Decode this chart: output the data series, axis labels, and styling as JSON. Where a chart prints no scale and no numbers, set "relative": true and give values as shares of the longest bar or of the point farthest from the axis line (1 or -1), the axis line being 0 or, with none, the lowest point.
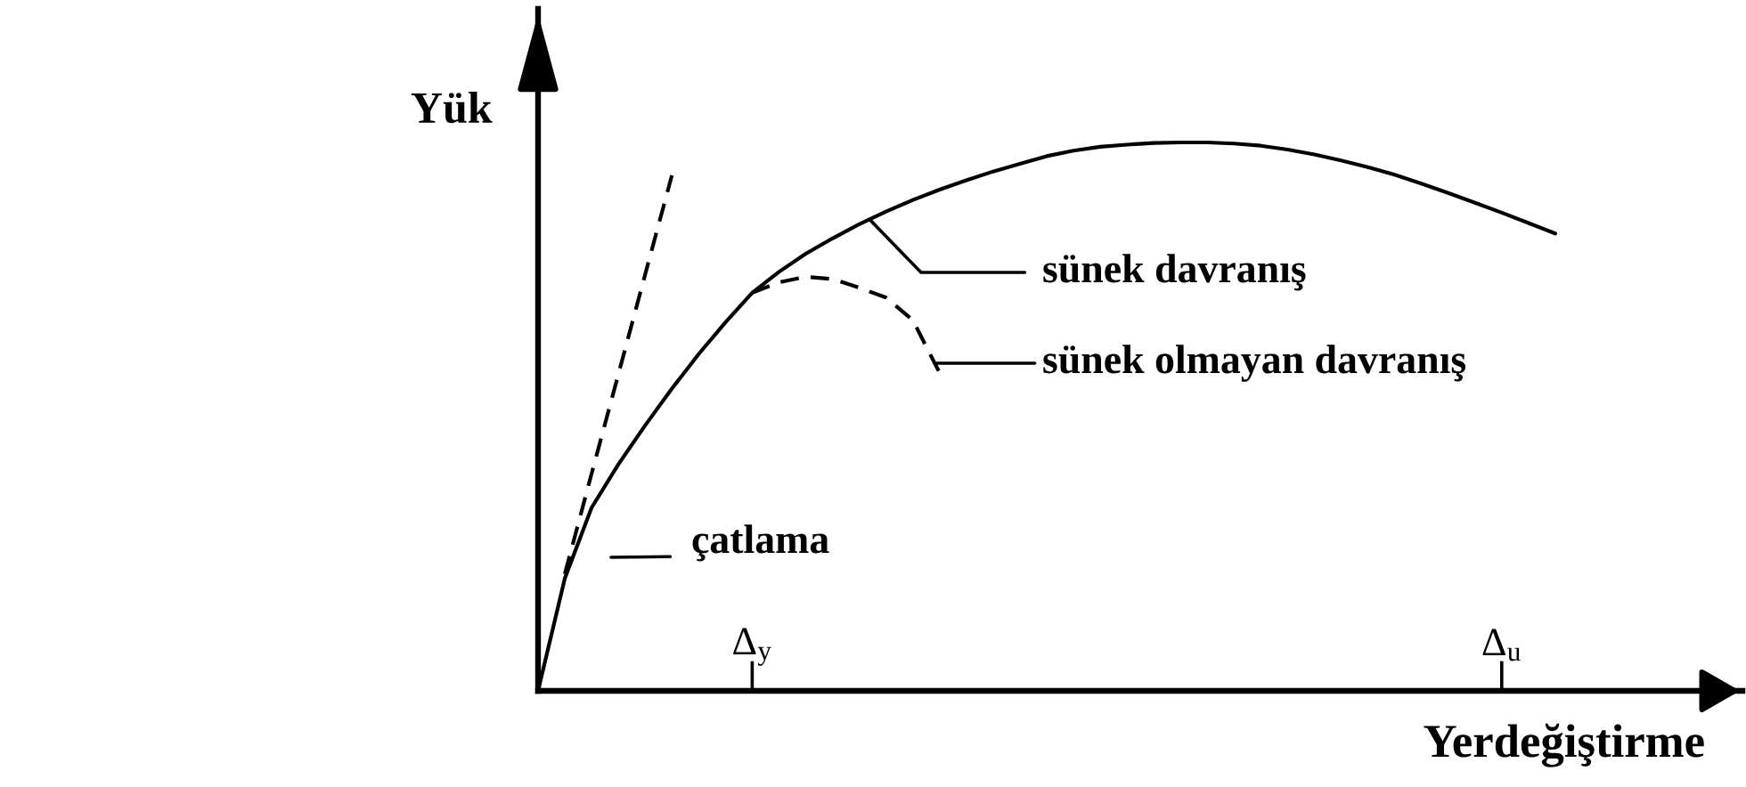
{
  "chart_data": {
    "type": "line",
    "xlabel": "Yerdeğiştirme",
    "ylabel": "Yük",
    "relative": true,
    "tick_labels": "x",
    "categories": [
      null,
      null,
      null,
      null,
      null,
      null,
      null,
      null,
      "Δ$_{y}$",
      null,
      null,
      null,
      null,
      null,
      null,
      null,
      null,
      null,
      null,
      null,
      null,
      null,
      null,
      null,
      null,
      null,
      null,
      null,
      null,
      null,
      null,
      null,
      null,
      null,
      null,
      null,
      "Δ$_{u}$",
      null,
      null
    ],
    "series": [
      {
        "color": "#000000",
        "line_style": "solid",
        "values": [
          0,
          0.205,
          0.334,
          0.413,
          0.484,
          0.551,
          0.614,
          0.672,
          0.726,
          0.764,
          0.797,
          0.825,
          0.851,
          0.874,
          0.895,
          0.914,
          0.931,
          0.947,
          0.961,
          0.975,
          0.985,
          0.992,
          0.996,
          0.999,
          1.0,
          1.0,
          0.998,
          0.994,
          0.987,
          0.978,
          0.967,
          0.955,
          0.941,
          0.925,
          0.908,
          0.89,
          0.872,
          0.853,
          0.834
        ]
      },
      {
        "color": "#000000",
        "line_style": "dashed",
        "values": [
          null,
          null,
          null,
          null,
          null,
          null,
          null,
          null,
          0.726,
          0.745,
          0.755,
          0.751,
          0.735,
          0.717,
          0.676,
          0.58,
          null,
          null,
          null,
          null,
          null,
          null,
          null,
          null,
          null,
          null,
          null,
          null,
          null,
          null,
          null,
          null,
          null,
          null,
          null,
          null,
          null,
          null,
          null
        ]
      },
      {
        "color": "#000000",
        "line_style": "dashed",
        "values": [
          null,
          0.213,
          0.396,
          0.577,
          0.759,
          0.94,
          null,
          null,
          null,
          null,
          null,
          null,
          null,
          null,
          null,
          null,
          null,
          null,
          null,
          null,
          null,
          null,
          null,
          null,
          null,
          null,
          null,
          null,
          null,
          null,
          null,
          null,
          null,
          null,
          null,
          null,
          null,
          null,
          null
        ]
      }
    ],
    "annotations": [
      "sünek davranış",
      "sünek olmayan davranış",
      "çatlama"
    ]
  }
}
